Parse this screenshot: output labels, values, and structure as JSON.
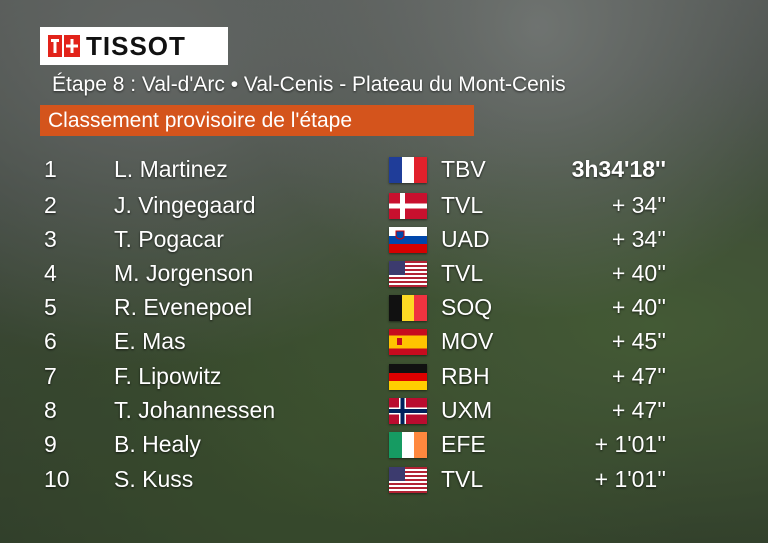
{
  "brand": {
    "name": "TISSOT"
  },
  "stage_title": "Étape 8 : Val-d'Arc • Val-Cenis - Plateau du Mont-Cenis",
  "banner_label": "Classement provisoire de l'étape",
  "colors": {
    "banner": "#d4541c",
    "logo_red": "#e2231a"
  },
  "riders": [
    {
      "rank": "1",
      "name": "L. Martinez",
      "flag": "france-flag-icon",
      "team": "TBV",
      "time": "3h34'18''"
    },
    {
      "rank": "2",
      "name": "J. Vingegaard",
      "flag": "denmark-flag-icon",
      "team": "TVL",
      "time": "+ 34''"
    },
    {
      "rank": "3",
      "name": "T. Pogacar",
      "flag": "slovenia-flag-icon",
      "team": "UAD",
      "time": "+ 34''"
    },
    {
      "rank": "4",
      "name": "M. Jorgenson",
      "flag": "usa-flag-icon",
      "team": "TVL",
      "time": "+ 40''"
    },
    {
      "rank": "5",
      "name": "R. Evenepoel",
      "flag": "belgium-flag-icon",
      "team": "SOQ",
      "time": "+ 40''"
    },
    {
      "rank": "6",
      "name": "E. Mas",
      "flag": "spain-flag-icon",
      "team": "MOV",
      "time": "+ 45''"
    },
    {
      "rank": "7",
      "name": "F. Lipowitz",
      "flag": "germany-flag-icon",
      "team": "RBH",
      "time": "+ 47''"
    },
    {
      "rank": "8",
      "name": "T. Johannessen",
      "flag": "norway-flag-icon",
      "team": "UXM",
      "time": "+ 47''"
    },
    {
      "rank": "9",
      "name": "B. Healy",
      "flag": "ireland-flag-icon",
      "team": "EFE",
      "time": "+ 1'01''"
    },
    {
      "rank": "10",
      "name": "S. Kuss",
      "flag": "usa-flag-icon",
      "team": "TVL",
      "time": "+ 1'01''"
    }
  ]
}
